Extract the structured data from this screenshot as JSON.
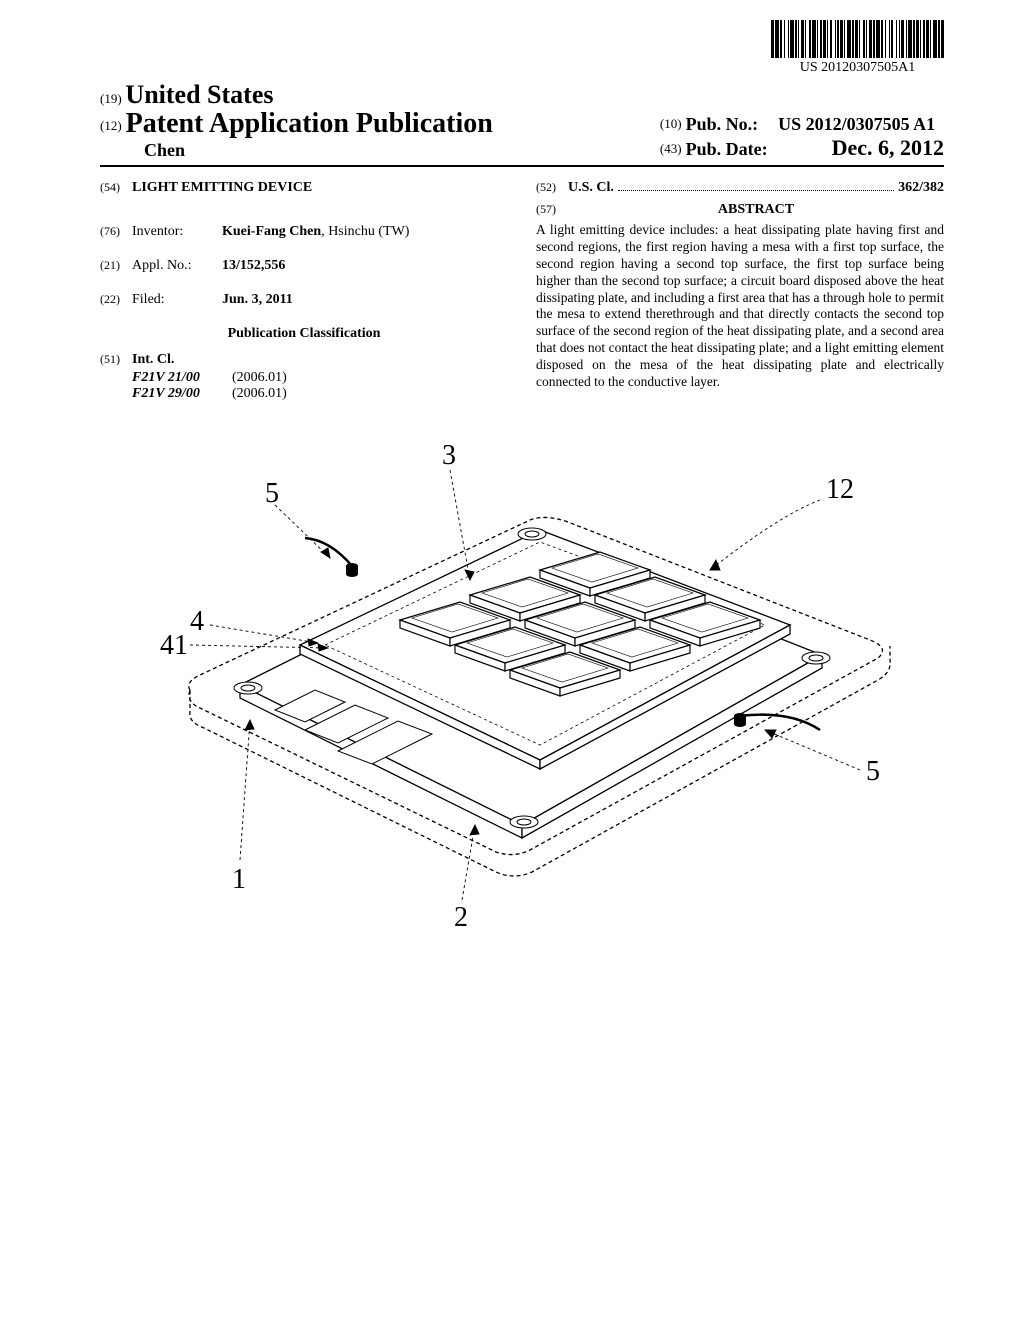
{
  "barcode": {
    "text": "US 20120307505A1",
    "bars": [
      3,
      1,
      4,
      1,
      2,
      2,
      1,
      3,
      1,
      1,
      4,
      1,
      2,
      1,
      1,
      2,
      3,
      1,
      1,
      3,
      2,
      1,
      4,
      1,
      1,
      2,
      2,
      1,
      3,
      1,
      1,
      2,
      2,
      3,
      1,
      1,
      2,
      1,
      3,
      1,
      1,
      2,
      4,
      1,
      2,
      1,
      3,
      1,
      1,
      3,
      2,
      1,
      1,
      2,
      3,
      1,
      2,
      1,
      4,
      1,
      2,
      2,
      1,
      3,
      1,
      1,
      2,
      3,
      1,
      2,
      1,
      1,
      3,
      2,
      1,
      1,
      4,
      1,
      2,
      1,
      3,
      1,
      1,
      2,
      2,
      1,
      3,
      1,
      1,
      2,
      4,
      1,
      2,
      1,
      3
    ]
  },
  "header": {
    "code19": "(19)",
    "country": "United States",
    "code12": "(12)",
    "pubType": "Patent Application Publication",
    "author": "Chen",
    "code10": "(10)",
    "pubNoLabel": "Pub. No.:",
    "pubNo": "US 2012/0307505 A1",
    "code43": "(43)",
    "pubDateLabel": "Pub. Date:",
    "pubDate": "Dec. 6, 2012"
  },
  "left": {
    "code54": "(54)",
    "title": "LIGHT EMITTING DEVICE",
    "code76": "(76)",
    "inventorLabel": "Inventor:",
    "inventor": "Kuei-Fang Chen",
    "inventorLoc": ", Hsinchu (TW)",
    "code21": "(21)",
    "applNoLabel": "Appl. No.:",
    "applNo": "13/152,556",
    "code22": "(22)",
    "filedLabel": "Filed:",
    "filed": "Jun. 3, 2011",
    "pubClass": "Publication Classification",
    "code51": "(51)",
    "intClLabel": "Int. Cl.",
    "intCl": [
      {
        "code": "F21V 21/00",
        "year": "(2006.01)"
      },
      {
        "code": "F21V 29/00",
        "year": "(2006.01)"
      }
    ]
  },
  "right": {
    "code52": "(52)",
    "usClLabel": "U.S. Cl.",
    "usCl": "362/382",
    "code57": "(57)",
    "abstractLabel": "ABSTRACT",
    "abstract": "A light emitting device includes: a heat dissipating plate having first and second regions, the first region having a mesa with a first top surface, the second region having a second top surface, the first top surface being higher than the second top surface; a circuit board disposed above the heat dissipating plate, and including a first area that has a through hole to permit the mesa to extend therethrough and that directly contacts the second top surface of the second region of the heat dissipating plate, and a second area that does not contact the heat dissipating plate; and a light emitting element disposed on the mesa of the heat dissipating plate and electrically connected to the conductive layer."
  },
  "figure": {
    "callouts": {
      "c3": "3",
      "c5a": "5",
      "c4": "4",
      "c41": "41",
      "c1": "1",
      "c2": "2",
      "c5b": "5",
      "c12": "12"
    }
  }
}
